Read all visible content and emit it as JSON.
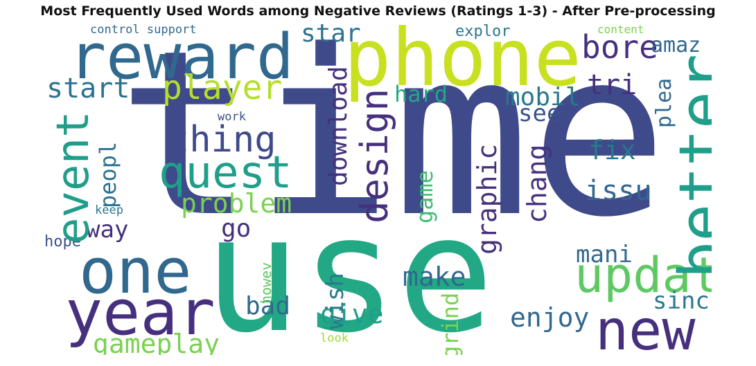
{
  "title": "Most Frequently Used Words among Negative Reviews (Ratings 1-3) - After Pre-processing",
  "colors": {
    "dark_purple": "#46307e",
    "indigo": "#3f4a8a",
    "blue": "#31688e",
    "teal": "#26828e",
    "green_teal": "#1f9e89",
    "green": "#22a884",
    "light_green": "#5ec962",
    "lime": "#b5de2b",
    "yellow_green": "#c8e020"
  },
  "words": [
    {
      "text": "time",
      "color": "#3f4a8a"
    },
    {
      "text": "use",
      "color": "#22a884"
    },
    {
      "text": "phone",
      "color": "#c8e020"
    },
    {
      "text": "reward",
      "color": "#31688e"
    },
    {
      "text": "one",
      "color": "#31688e"
    },
    {
      "text": "year",
      "color": "#46307e"
    },
    {
      "text": "new",
      "color": "#46307e"
    },
    {
      "text": "better",
      "color": "#1f9e89"
    },
    {
      "text": "updat",
      "color": "#5ec962"
    },
    {
      "text": "quest",
      "color": "#1f9e89"
    },
    {
      "text": "event",
      "color": "#1f9e89"
    },
    {
      "text": "player",
      "color": "#b5de2b"
    },
    {
      "text": "thing",
      "color": "#3f4a8a"
    },
    {
      "text": "design",
      "color": "#46307e"
    },
    {
      "text": "bore",
      "color": "#46307e"
    },
    {
      "text": "problem",
      "color": "#7ad151"
    },
    {
      "text": "gameplay",
      "color": "#7ad151"
    },
    {
      "text": "star",
      "color": "#2c728e"
    },
    {
      "text": "amaz",
      "color": "#31688e"
    },
    {
      "text": "start",
      "color": "#2c728e"
    },
    {
      "text": "hard",
      "color": "#22a884"
    },
    {
      "text": "tri",
      "color": "#46307e"
    },
    {
      "text": "mobil",
      "color": "#2a788e"
    },
    {
      "text": "see",
      "color": "#3b528b"
    },
    {
      "text": "plea",
      "color": "#31688e"
    },
    {
      "text": "download",
      "color": "#46307e"
    },
    {
      "text": "peopl",
      "color": "#2c728e"
    },
    {
      "text": "fix",
      "color": "#2a788e"
    },
    {
      "text": "issu",
      "color": "#31688e"
    },
    {
      "text": "graphic",
      "color": "#46307e"
    },
    {
      "text": "chang",
      "color": "#46307e"
    },
    {
      "text": "game",
      "color": "#3fbc73"
    },
    {
      "text": "go",
      "color": "#46307e"
    },
    {
      "text": "way",
      "color": "#46307e"
    },
    {
      "text": "mani",
      "color": "#31688e"
    },
    {
      "text": "make",
      "color": "#31688e"
    },
    {
      "text": "wish",
      "color": "#2a788e"
    },
    {
      "text": "give",
      "color": "#1f9e89"
    },
    {
      "text": "bad",
      "color": "#31688e"
    },
    {
      "text": "sinc",
      "color": "#2a788e"
    },
    {
      "text": "enjoy",
      "color": "#31688e"
    },
    {
      "text": "grind",
      "color": "#7ad151"
    },
    {
      "text": "explor",
      "color": "#2a788e"
    },
    {
      "text": "control support",
      "color": "#31688e"
    },
    {
      "text": "content",
      "color": "#7ad151"
    },
    {
      "text": "work",
      "color": "#3b528b"
    },
    {
      "text": "keep",
      "color": "#2a788e"
    },
    {
      "text": "hope",
      "color": "#3b528b"
    },
    {
      "text": "howev",
      "color": "#5ec962"
    },
    {
      "text": "look",
      "color": "#a0da39"
    }
  ]
}
